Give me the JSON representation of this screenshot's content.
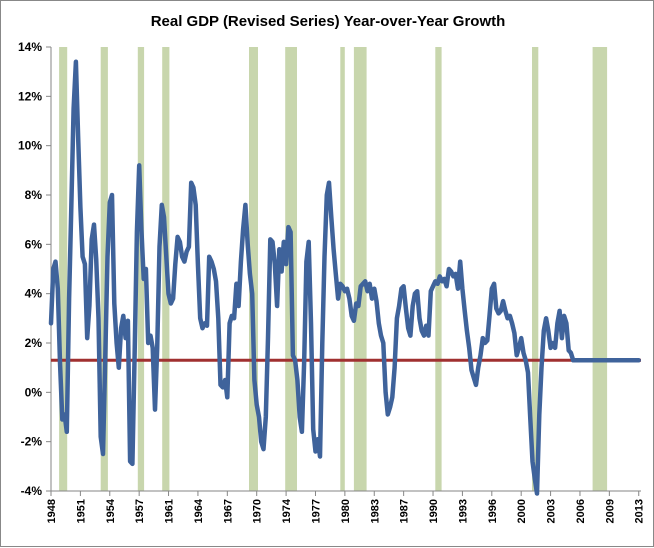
{
  "chart_data": {
    "type": "line",
    "title": "Real GDP (Revised Series) Year-over-Year Growth",
    "xlabel": "",
    "ylabel": "",
    "xlim": [
      1948.0,
      2013.25
    ],
    "ylim": [
      -4,
      14
    ],
    "y_ticks": [
      "-4%",
      "-2%",
      "0%",
      "2%",
      "4%",
      "6%",
      "8%",
      "10%",
      "12%",
      "14%"
    ],
    "y_tick_values": [
      -4,
      -2,
      0,
      2,
      4,
      6,
      8,
      10,
      12,
      14
    ],
    "x_ticks": [
      "1948",
      "1951",
      "1954",
      "1957",
      "1961",
      "1964",
      "1967",
      "1970",
      "1974",
      "1977",
      "1980",
      "1983",
      "1987",
      "1990",
      "1993",
      "1996",
      "2000",
      "2003",
      "2006",
      "2009",
      "2013"
    ],
    "x_tick_values": [
      1948.0,
      1951.25,
      1954.5,
      1957.75,
      1961.0,
      1964.25,
      1967.5,
      1970.75,
      1974.0,
      1977.25,
      1980.5,
      1983.75,
      1987.0,
      1990.25,
      1993.5,
      1996.75,
      2000.0,
      2003.25,
      2006.5,
      2009.75,
      2013.0
    ],
    "grid": false,
    "recessions": [
      [
        1948.9,
        1949.8
      ],
      [
        1953.5,
        1954.3
      ],
      [
        1957.6,
        1958.3
      ],
      [
        1960.3,
        1961.1
      ],
      [
        1969.9,
        1970.9
      ],
      [
        1973.9,
        1975.2
      ],
      [
        1980.0,
        1980.5
      ],
      [
        1981.5,
        1982.9
      ],
      [
        1990.5,
        1991.2
      ],
      [
        2001.2,
        2001.9
      ],
      [
        2007.9,
        2009.5
      ]
    ],
    "reference_line": {
      "y": 1.3,
      "color": "#a03030"
    },
    "series": [
      {
        "color": "#3f639b",
        "points": [
          [
            1948.0,
            2.8
          ],
          [
            1948.25,
            5.0
          ],
          [
            1948.5,
            5.3
          ],
          [
            1948.75,
            4.2
          ],
          [
            1949.0,
            1.2
          ],
          [
            1949.25,
            -1.1
          ],
          [
            1949.5,
            -0.9
          ],
          [
            1949.75,
            -1.6
          ],
          [
            1950.0,
            3.8
          ],
          [
            1950.25,
            7.5
          ],
          [
            1950.5,
            11.5
          ],
          [
            1950.75,
            13.4
          ],
          [
            1951.0,
            10.4
          ],
          [
            1951.25,
            7.5
          ],
          [
            1951.5,
            5.5
          ],
          [
            1951.75,
            5.2
          ],
          [
            1952.0,
            2.2
          ],
          [
            1952.25,
            3.5
          ],
          [
            1952.5,
            6.2
          ],
          [
            1952.75,
            6.8
          ],
          [
            1953.0,
            5.4
          ],
          [
            1953.25,
            3.0
          ],
          [
            1953.5,
            -1.8
          ],
          [
            1953.75,
            -2.5
          ],
          [
            1954.0,
            1.5
          ],
          [
            1954.25,
            5.5
          ],
          [
            1954.5,
            7.7
          ],
          [
            1954.75,
            8.0
          ],
          [
            1955.0,
            3.6
          ],
          [
            1955.25,
            2.0
          ],
          [
            1955.5,
            1.0
          ],
          [
            1955.75,
            2.6
          ],
          [
            1956.0,
            3.1
          ],
          [
            1956.25,
            2.2
          ],
          [
            1956.5,
            2.9
          ],
          [
            1956.75,
            -2.8
          ],
          [
            1957.0,
            -2.9
          ],
          [
            1957.25,
            1.5
          ],
          [
            1957.5,
            6.5
          ],
          [
            1957.75,
            9.2
          ],
          [
            1958.0,
            6.6
          ],
          [
            1958.25,
            4.6
          ],
          [
            1958.5,
            5.0
          ],
          [
            1958.75,
            2.0
          ],
          [
            1959.0,
            2.3
          ],
          [
            1959.25,
            1.8
          ],
          [
            1959.5,
            -0.7
          ],
          [
            1959.75,
            1.8
          ],
          [
            1960.0,
            5.9
          ],
          [
            1960.25,
            7.6
          ],
          [
            1960.5,
            7.1
          ],
          [
            1960.75,
            5.5
          ],
          [
            1961.0,
            4.0
          ],
          [
            1961.25,
            3.6
          ],
          [
            1961.5,
            3.8
          ],
          [
            1961.75,
            5.2
          ],
          [
            1962.0,
            6.3
          ],
          [
            1962.25,
            6.1
          ],
          [
            1962.5,
            5.5
          ],
          [
            1962.75,
            5.3
          ],
          [
            1963.0,
            5.7
          ],
          [
            1963.25,
            5.9
          ],
          [
            1963.5,
            8.5
          ],
          [
            1963.75,
            8.3
          ],
          [
            1964.0,
            7.6
          ],
          [
            1964.25,
            5.2
          ],
          [
            1964.5,
            3.0
          ],
          [
            1964.75,
            2.6
          ],
          [
            1965.0,
            2.8
          ],
          [
            1965.25,
            2.7
          ],
          [
            1965.5,
            5.5
          ],
          [
            1965.75,
            5.3
          ],
          [
            1966.0,
            5.0
          ],
          [
            1966.25,
            4.5
          ],
          [
            1966.5,
            3.0
          ],
          [
            1966.75,
            0.3
          ],
          [
            1967.0,
            0.2
          ],
          [
            1967.25,
            0.5
          ],
          [
            1967.5,
            -0.2
          ],
          [
            1967.75,
            2.8
          ],
          [
            1968.0,
            3.1
          ],
          [
            1968.25,
            3.0
          ],
          [
            1968.5,
            4.4
          ],
          [
            1968.75,
            3.5
          ],
          [
            1969.0,
            5.3
          ],
          [
            1969.25,
            6.6
          ],
          [
            1969.5,
            7.6
          ],
          [
            1969.75,
            6.0
          ],
          [
            1970.0,
            4.8
          ],
          [
            1970.25,
            4.0
          ],
          [
            1970.5,
            0.5
          ],
          [
            1970.75,
            -0.5
          ],
          [
            1971.0,
            -1.0
          ],
          [
            1971.25,
            -2.0
          ],
          [
            1971.5,
            -2.3
          ],
          [
            1971.75,
            -1.0
          ],
          [
            1972.0,
            2.2
          ],
          [
            1972.25,
            6.2
          ],
          [
            1972.5,
            6.1
          ],
          [
            1972.75,
            5.2
          ],
          [
            1973.0,
            3.5
          ],
          [
            1973.25,
            5.8
          ],
          [
            1973.5,
            4.9
          ],
          [
            1973.75,
            6.1
          ],
          [
            1974.0,
            5.2
          ],
          [
            1974.25,
            6.7
          ],
          [
            1974.5,
            6.5
          ],
          [
            1974.75,
            1.5
          ],
          [
            1975.0,
            1.3
          ],
          [
            1975.25,
            0.5
          ],
          [
            1975.5,
            -1.0
          ],
          [
            1975.75,
            -1.6
          ],
          [
            1976.0,
            1.3
          ],
          [
            1976.25,
            5.3
          ],
          [
            1976.5,
            6.1
          ],
          [
            1976.75,
            2.8
          ],
          [
            1977.0,
            -1.5
          ],
          [
            1977.25,
            -2.4
          ],
          [
            1977.5,
            -1.9
          ],
          [
            1977.75,
            -2.6
          ],
          [
            1978.0,
            2.0
          ],
          [
            1978.25,
            5.5
          ],
          [
            1978.5,
            8.0
          ],
          [
            1978.75,
            8.5
          ],
          [
            1979.0,
            7.1
          ],
          [
            1979.25,
            5.8
          ],
          [
            1979.5,
            4.8
          ],
          [
            1979.75,
            3.8
          ],
          [
            1980.0,
            4.4
          ],
          [
            1980.25,
            4.3
          ],
          [
            1980.5,
            4.1
          ],
          [
            1980.75,
            4.2
          ],
          [
            1981.0,
            3.8
          ],
          [
            1981.25,
            3.1
          ],
          [
            1981.5,
            2.9
          ],
          [
            1981.75,
            3.6
          ],
          [
            1982.0,
            3.5
          ],
          [
            1982.25,
            4.3
          ],
          [
            1982.5,
            4.4
          ],
          [
            1982.75,
            4.5
          ],
          [
            1983.0,
            4.1
          ],
          [
            1983.25,
            4.4
          ],
          [
            1983.5,
            3.8
          ],
          [
            1983.75,
            4.2
          ],
          [
            1984.0,
            3.7
          ],
          [
            1984.25,
            2.8
          ],
          [
            1984.5,
            2.3
          ],
          [
            1984.75,
            2.0
          ],
          [
            1985.0,
            0.0
          ],
          [
            1985.25,
            -0.9
          ],
          [
            1985.5,
            -0.6
          ],
          [
            1985.75,
            -0.2
          ],
          [
            1986.0,
            1.0
          ],
          [
            1986.25,
            3.0
          ],
          [
            1986.5,
            3.5
          ],
          [
            1986.75,
            4.2
          ],
          [
            1987.0,
            4.3
          ],
          [
            1987.25,
            3.4
          ],
          [
            1987.5,
            2.6
          ],
          [
            1987.75,
            2.3
          ],
          [
            1988.0,
            3.5
          ],
          [
            1988.25,
            4.0
          ],
          [
            1988.5,
            4.1
          ],
          [
            1988.75,
            3.0
          ],
          [
            1989.0,
            2.5
          ],
          [
            1989.25,
            2.3
          ],
          [
            1989.5,
            2.7
          ],
          [
            1989.75,
            2.3
          ],
          [
            1990.0,
            4.1
          ],
          [
            1990.25,
            4.3
          ],
          [
            1990.5,
            4.5
          ],
          [
            1990.75,
            4.4
          ],
          [
            1991.0,
            4.7
          ],
          [
            1991.25,
            4.5
          ],
          [
            1991.5,
            4.6
          ],
          [
            1991.75,
            4.3
          ],
          [
            1992.0,
            5.0
          ],
          [
            1992.25,
            4.9
          ],
          [
            1992.5,
            4.7
          ],
          [
            1992.75,
            4.8
          ],
          [
            1993.0,
            4.2
          ],
          [
            1993.25,
            5.3
          ],
          [
            1993.5,
            4.2
          ],
          [
            1993.75,
            3.3
          ],
          [
            1994.0,
            2.5
          ],
          [
            1994.25,
            1.8
          ],
          [
            1994.5,
            0.9
          ],
          [
            1994.75,
            0.6
          ],
          [
            1995.0,
            0.3
          ],
          [
            1995.25,
            1.0
          ],
          [
            1995.5,
            1.5
          ],
          [
            1995.75,
            2.2
          ],
          [
            1996.0,
            2.0
          ],
          [
            1996.25,
            2.1
          ],
          [
            1996.5,
            3.1
          ],
          [
            1996.75,
            4.2
          ],
          [
            1997.0,
            4.4
          ],
          [
            1997.25,
            3.4
          ],
          [
            1997.5,
            3.2
          ],
          [
            1997.75,
            3.3
          ],
          [
            1998.0,
            3.7
          ],
          [
            1998.25,
            3.3
          ],
          [
            1998.5,
            3.0
          ],
          [
            1998.75,
            3.1
          ],
          [
            1999.0,
            2.8
          ],
          [
            1999.25,
            2.4
          ],
          [
            1999.5,
            1.5
          ],
          [
            1999.75,
            1.8
          ],
          [
            2000.0,
            2.2
          ],
          [
            2000.25,
            1.6
          ],
          [
            2000.5,
            1.3
          ],
          [
            2000.75,
            0.8
          ],
          [
            2001.0,
            -1.0
          ],
          [
            2001.25,
            -2.8
          ],
          [
            2001.5,
            -3.5
          ],
          [
            2001.75,
            -4.1
          ],
          [
            2002.0,
            -0.9
          ],
          [
            2002.25,
            1.0
          ],
          [
            2002.5,
            2.5
          ],
          [
            2002.75,
            3.0
          ],
          [
            2003.0,
            2.5
          ],
          [
            2003.25,
            1.8
          ],
          [
            2003.5,
            2.0
          ],
          [
            2003.75,
            1.8
          ],
          [
            2004.0,
            2.8
          ],
          [
            2004.25,
            3.3
          ],
          [
            2004.5,
            2.2
          ],
          [
            2004.75,
            3.1
          ],
          [
            2005.0,
            2.8
          ],
          [
            2005.25,
            1.7
          ],
          [
            2005.5,
            1.6
          ],
          [
            2005.75,
            1.3
          ],
          [
            2013.0,
            1.3
          ]
        ]
      }
    ]
  }
}
